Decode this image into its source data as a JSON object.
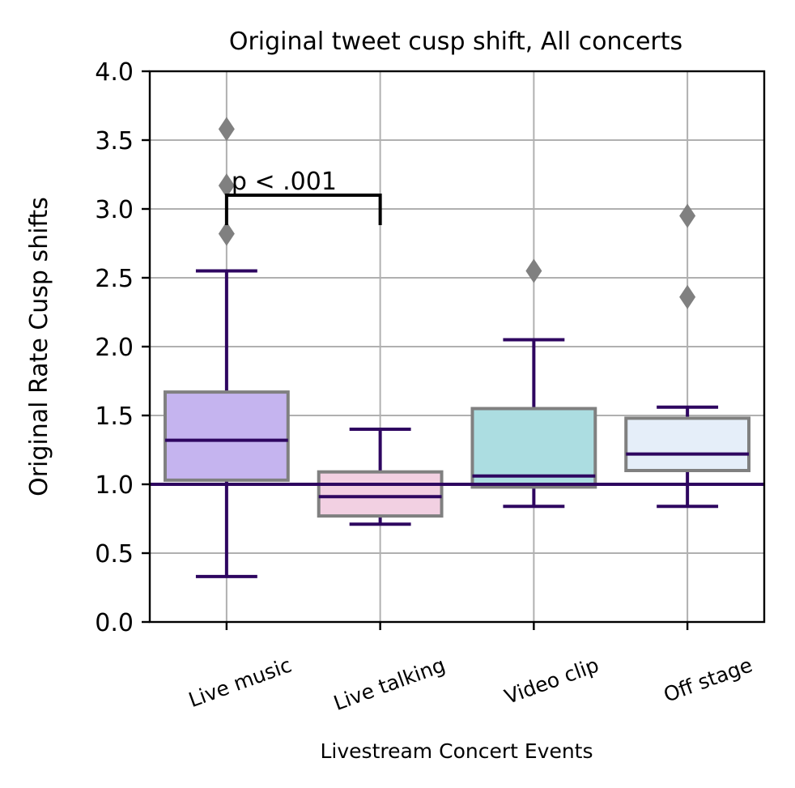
{
  "chart_data": {
    "type": "box",
    "title": "Original tweet cusp shift, All concerts",
    "xlabel": "Livestream Concert Events",
    "ylabel": "Original Rate Cusp shifts",
    "ylim": [
      0,
      4.0
    ],
    "yticks": [
      "0.0",
      "0.5",
      "1.0",
      "1.5",
      "2.0",
      "2.5",
      "3.0",
      "3.5",
      "4.0"
    ],
    "grid": true,
    "reference_line": 1.0,
    "categories": [
      "Live music",
      "Live talking",
      "Video clip",
      "Off stage"
    ],
    "boxes": [
      {
        "category": "Live music",
        "whisker_low": 0.33,
        "q1": 1.03,
        "median": 1.32,
        "q3": 1.67,
        "whisker_high": 2.55,
        "outliers": [
          2.82,
          3.17,
          3.58
        ],
        "color": "#c5b4ef"
      },
      {
        "category": "Live talking",
        "whisker_low": 0.71,
        "q1": 0.77,
        "median": 0.91,
        "q3": 1.09,
        "whisker_high": 1.4,
        "outliers": [],
        "color": "#f2d0e2"
      },
      {
        "category": "Video clip",
        "whisker_low": 0.84,
        "q1": 0.98,
        "median": 1.06,
        "q3": 1.55,
        "whisker_high": 2.05,
        "outliers": [
          2.55
        ],
        "color": "#acdde1"
      },
      {
        "category": "Off stage",
        "whisker_low": 0.84,
        "q1": 1.1,
        "median": 1.22,
        "q3": 1.48,
        "whisker_high": 1.56,
        "outliers": [
          2.36,
          2.95
        ],
        "color": "#e5eef9"
      }
    ],
    "annotation": {
      "text": "p < .001",
      "from": "Live music",
      "to": "Live talking",
      "y": 3.1
    },
    "colors": {
      "whisker": "#2e0660",
      "box_edge": "#808080",
      "outlier": "#808080",
      "grid": "#b0b0b0"
    }
  }
}
